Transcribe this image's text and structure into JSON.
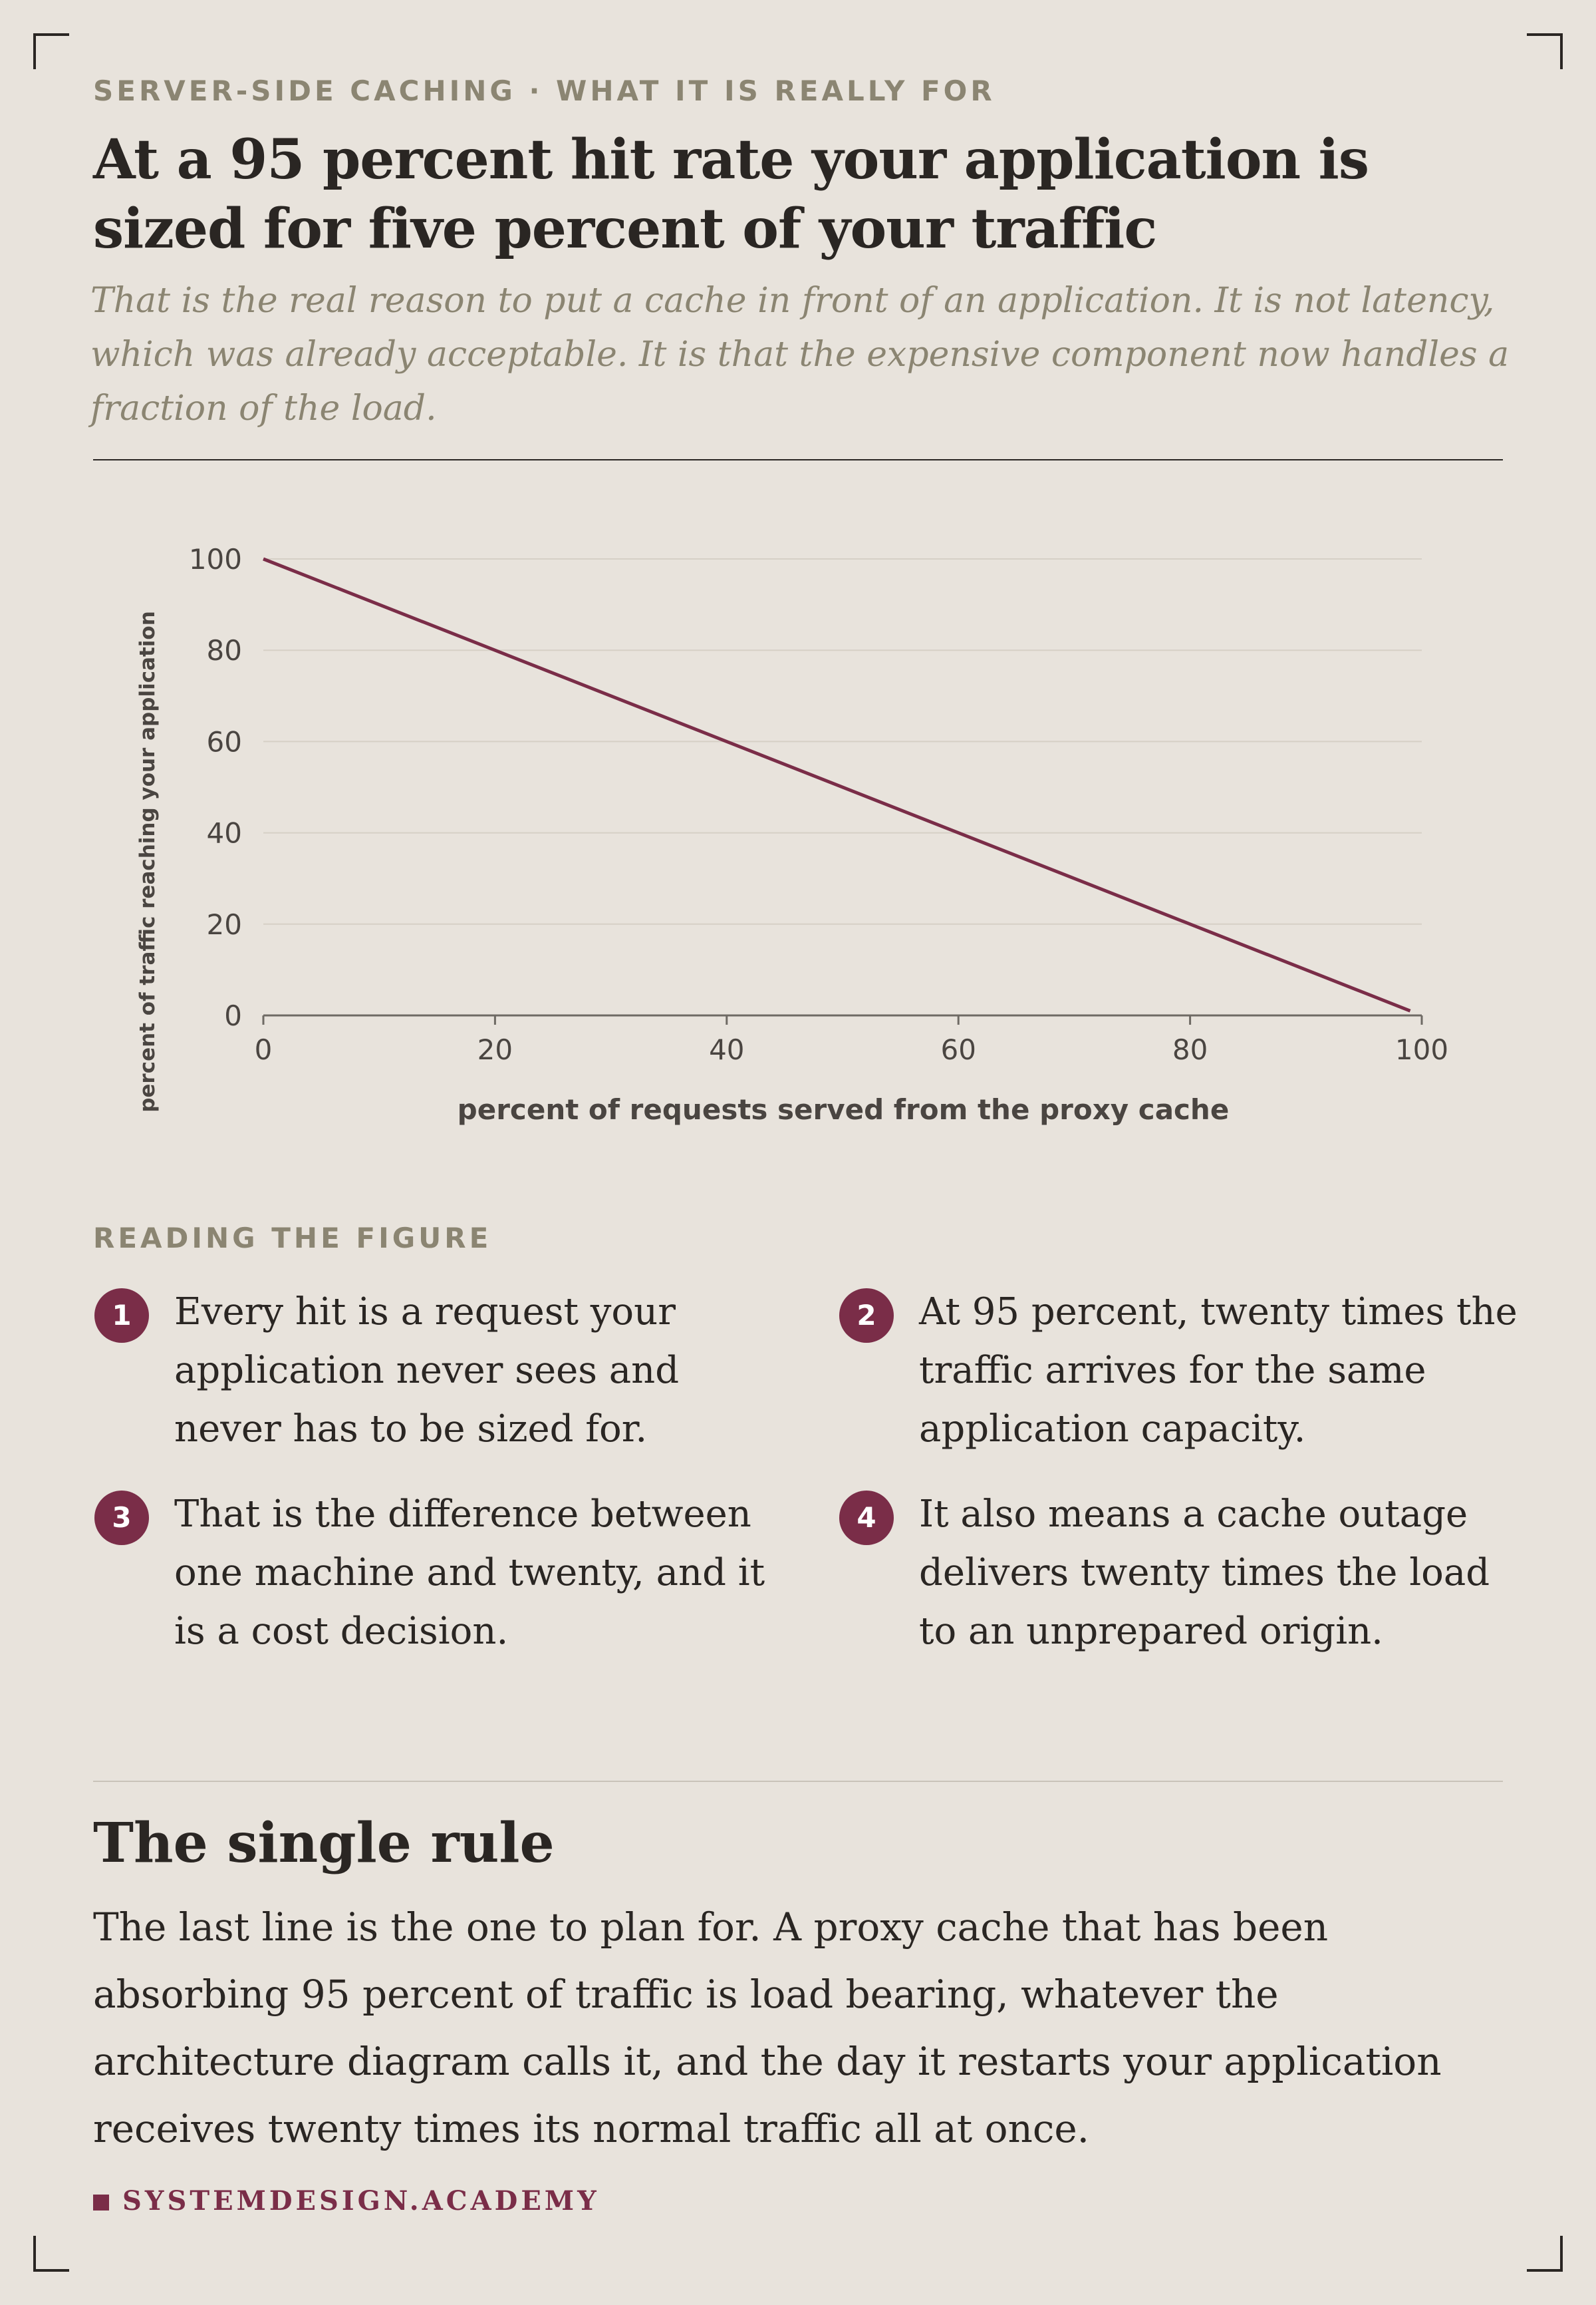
{
  "header": {
    "kicker": "SERVER-SIDE CACHING · WHAT IT IS REALLY FOR",
    "title": "At a 95 percent hit rate your application is sized for five percent of your traffic",
    "subtitle": "That is the real reason to put a cache in front of an application. It is not latency, which was already acceptable. It is that the expensive component now handles a fraction of the load."
  },
  "chart_data": {
    "type": "line",
    "title": "",
    "xlabel": "percent of requests served from the proxy cache",
    "ylabel": "percent of traffic reaching your application",
    "xlim": [
      0,
      100
    ],
    "ylim": [
      0,
      100
    ],
    "x_ticks": [
      0,
      20,
      40,
      60,
      80,
      100
    ],
    "y_ticks": [
      0,
      20,
      40,
      60,
      80,
      100
    ],
    "grid": "horizontal",
    "legend": "none",
    "series": [
      {
        "color": "#7a2d48",
        "x": [
          0,
          20,
          40,
          60,
          80,
          95,
          99
        ],
        "y": [
          100,
          80,
          60,
          40,
          20,
          5,
          1
        ]
      }
    ]
  },
  "reading": {
    "label": "READING THE FIGURE",
    "items": [
      {
        "num": "1",
        "text": "Every hit is a request your application never sees and never has to be sized for."
      },
      {
        "num": "2",
        "text": "At 95 percent, twenty times the traffic arrives for the same application capacity."
      },
      {
        "num": "3",
        "text": "That is the difference between one machine and twenty, and it is a cost decision."
      },
      {
        "num": "4",
        "text": "It also means a cache outage delivers twenty times the load to an unprepared origin."
      }
    ]
  },
  "rule": {
    "title": "The single rule",
    "body": "The last line is the one to plan for. A proxy cache that has been absorbing 95 percent of traffic is load bearing, whatever the architecture diagram calls it, and the day it restarts your application receives twenty times its normal traffic all at once."
  },
  "brand": "SYSTEMDESIGN.ACADEMY",
  "colors": {
    "background": "#e8e3dc",
    "accent": "#7a2d48",
    "muted": "#8b8572",
    "text": "#2a2623"
  }
}
